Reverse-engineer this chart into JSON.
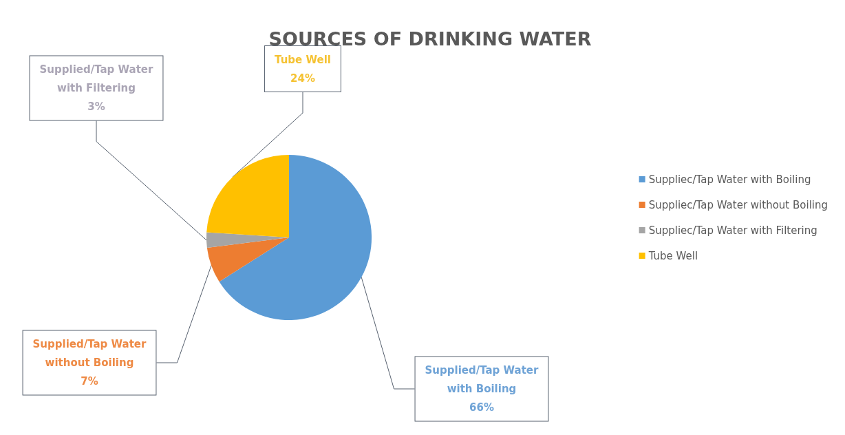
{
  "chart_data": {
    "type": "pie",
    "title": "SOURCES OF DRINKING WATER",
    "categories": [
      "Suppliec/Tap Water with Boiling",
      "Suppliec/Tap Water without Boiling",
      "Suppliec/Tap Water with Filtering",
      "Tube Well"
    ],
    "values": [
      66,
      7,
      3,
      24
    ],
    "colors": [
      "#5b9bd5",
      "#ed7d31",
      "#a5a5a5",
      "#ffc000"
    ],
    "value_labels": [
      "Supplied/Tap Water\nwith Boiling\n66%",
      "Supplied/Tap Water\nwithout Boiling\n7%",
      "Supplied/Tap Water\nwith Filtering\n3%",
      "Tube Well\n24%"
    ],
    "legend": "right"
  }
}
